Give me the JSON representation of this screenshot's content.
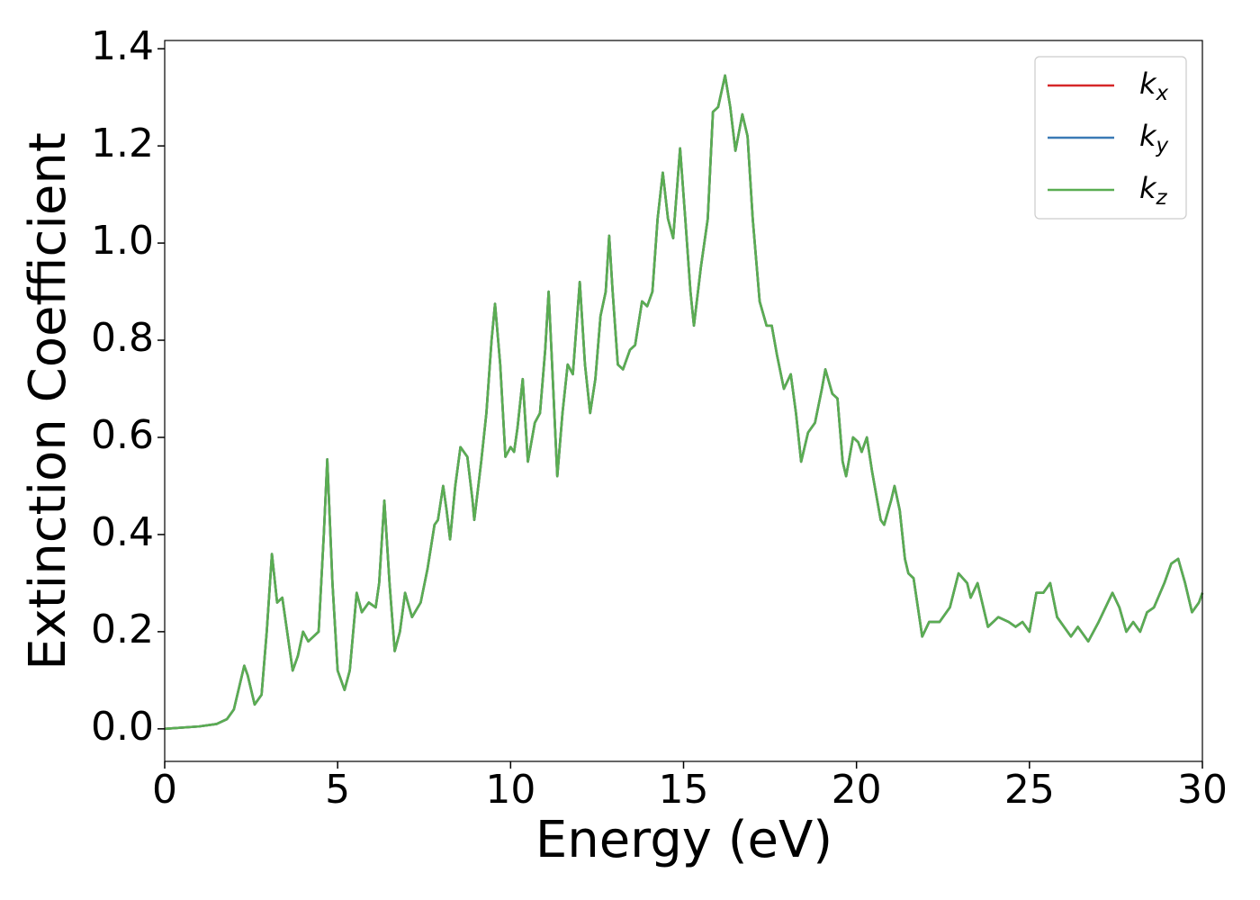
{
  "chart_data": {
    "type": "line",
    "xlabel": "Energy (eV)",
    "ylabel": "Extinction Coefficient",
    "x": [
      0,
      1,
      1.5,
      1.8,
      2.0,
      2.2,
      2.3,
      2.4,
      2.6,
      2.8,
      2.95,
      3.1,
      3.25,
      3.4,
      3.5,
      3.7,
      3.85,
      4.0,
      4.15,
      4.3,
      4.45,
      4.6,
      4.7,
      4.85,
      5.0,
      5.2,
      5.35,
      5.55,
      5.7,
      5.9,
      6.1,
      6.2,
      6.35,
      6.5,
      6.65,
      6.8,
      6.95,
      7.15,
      7.4,
      7.6,
      7.8,
      7.9,
      8.05,
      8.15,
      8.25,
      8.4,
      8.55,
      8.75,
      8.9,
      8.95,
      9.15,
      9.3,
      9.45,
      9.55,
      9.7,
      9.85,
      10.0,
      10.1,
      10.2,
      10.35,
      10.5,
      10.7,
      10.85,
      11.0,
      11.1,
      11.2,
      11.35,
      11.5,
      11.65,
      11.8,
      12.0,
      12.15,
      12.3,
      12.45,
      12.6,
      12.75,
      12.85,
      12.95,
      13.1,
      13.25,
      13.45,
      13.6,
      13.8,
      13.95,
      14.1,
      14.25,
      14.4,
      14.55,
      14.7,
      14.9,
      15.05,
      15.2,
      15.3,
      15.5,
      15.7,
      15.85,
      16.0,
      16.2,
      16.35,
      16.5,
      16.7,
      16.85,
      17.0,
      17.2,
      17.4,
      17.55,
      17.7,
      17.9,
      18.1,
      18.25,
      18.4,
      18.6,
      18.8,
      19.0,
      19.1,
      19.3,
      19.45,
      19.6,
      19.7,
      19.9,
      20.05,
      20.15,
      20.3,
      20.45,
      20.7,
      20.8,
      21.0,
      21.1,
      21.25,
      21.4,
      21.5,
      21.65,
      21.9,
      22.1,
      22.4,
      22.7,
      22.95,
      23.2,
      23.3,
      23.5,
      23.8,
      24.1,
      24.4,
      24.6,
      24.8,
      25.0,
      25.2,
      25.4,
      25.6,
      25.8,
      26.0,
      26.2,
      26.4,
      26.7,
      27.0,
      27.4,
      27.6,
      27.8,
      28.0,
      28.2,
      28.4,
      28.6,
      28.9,
      29.1,
      29.3,
      29.5,
      29.7,
      29.9,
      30
    ],
    "series": [
      {
        "name": "kx",
        "color": "#d62728",
        "values": [
          0,
          0.005,
          0.01,
          0.02,
          0.04,
          0.1,
          0.13,
          0.11,
          0.05,
          0.07,
          0.2,
          0.36,
          0.26,
          0.27,
          0.22,
          0.12,
          0.15,
          0.2,
          0.18,
          0.19,
          0.2,
          0.4,
          0.555,
          0.3,
          0.12,
          0.08,
          0.12,
          0.28,
          0.24,
          0.26,
          0.25,
          0.3,
          0.47,
          0.3,
          0.16,
          0.2,
          0.28,
          0.23,
          0.26,
          0.33,
          0.42,
          0.43,
          0.5,
          0.45,
          0.39,
          0.5,
          0.58,
          0.56,
          0.47,
          0.43,
          0.55,
          0.65,
          0.8,
          0.875,
          0.75,
          0.56,
          0.58,
          0.57,
          0.62,
          0.72,
          0.55,
          0.63,
          0.65,
          0.78,
          0.9,
          0.75,
          0.52,
          0.65,
          0.75,
          0.73,
          0.92,
          0.75,
          0.65,
          0.72,
          0.85,
          0.9,
          1.015,
          0.9,
          0.75,
          0.74,
          0.78,
          0.79,
          0.88,
          0.87,
          0.9,
          1.05,
          1.145,
          1.05,
          1.01,
          1.195,
          1.05,
          0.9,
          0.83,
          0.95,
          1.05,
          1.27,
          1.28,
          1.345,
          1.28,
          1.19,
          1.265,
          1.22,
          1.05,
          0.88,
          0.83,
          0.83,
          0.77,
          0.7,
          0.73,
          0.65,
          0.55,
          0.61,
          0.63,
          0.7,
          0.74,
          0.69,
          0.68,
          0.55,
          0.52,
          0.6,
          0.59,
          0.57,
          0.6,
          0.53,
          0.43,
          0.42,
          0.47,
          0.5,
          0.45,
          0.35,
          0.32,
          0.31,
          0.19,
          0.22,
          0.22,
          0.25,
          0.32,
          0.3,
          0.27,
          0.3,
          0.21,
          0.23,
          0.22,
          0.21,
          0.22,
          0.2,
          0.28,
          0.28,
          0.3,
          0.23,
          0.21,
          0.19,
          0.21,
          0.18,
          0.22,
          0.28,
          0.25,
          0.2,
          0.22,
          0.2,
          0.24,
          0.25,
          0.3,
          0.34,
          0.35,
          0.3,
          0.24,
          0.26,
          0.28
        ]
      },
      {
        "name": "ky",
        "color": "#3a7ab5",
        "values": [
          0,
          0.005,
          0.01,
          0.02,
          0.04,
          0.1,
          0.13,
          0.11,
          0.05,
          0.07,
          0.2,
          0.36,
          0.26,
          0.27,
          0.22,
          0.12,
          0.15,
          0.2,
          0.18,
          0.19,
          0.2,
          0.4,
          0.555,
          0.3,
          0.12,
          0.08,
          0.12,
          0.28,
          0.24,
          0.26,
          0.25,
          0.3,
          0.47,
          0.3,
          0.16,
          0.2,
          0.28,
          0.23,
          0.26,
          0.33,
          0.42,
          0.43,
          0.5,
          0.45,
          0.39,
          0.5,
          0.58,
          0.56,
          0.47,
          0.43,
          0.55,
          0.65,
          0.8,
          0.875,
          0.75,
          0.56,
          0.58,
          0.57,
          0.62,
          0.72,
          0.55,
          0.63,
          0.65,
          0.78,
          0.9,
          0.75,
          0.52,
          0.65,
          0.75,
          0.73,
          0.92,
          0.75,
          0.65,
          0.72,
          0.85,
          0.9,
          1.015,
          0.9,
          0.75,
          0.74,
          0.78,
          0.79,
          0.88,
          0.87,
          0.9,
          1.05,
          1.145,
          1.05,
          1.01,
          1.195,
          1.05,
          0.9,
          0.83,
          0.95,
          1.05,
          1.27,
          1.28,
          1.345,
          1.28,
          1.19,
          1.265,
          1.22,
          1.05,
          0.88,
          0.83,
          0.83,
          0.77,
          0.7,
          0.73,
          0.65,
          0.55,
          0.61,
          0.63,
          0.7,
          0.74,
          0.69,
          0.68,
          0.55,
          0.52,
          0.6,
          0.59,
          0.57,
          0.6,
          0.53,
          0.43,
          0.42,
          0.47,
          0.5,
          0.45,
          0.35,
          0.32,
          0.31,
          0.19,
          0.22,
          0.22,
          0.25,
          0.32,
          0.3,
          0.27,
          0.3,
          0.21,
          0.23,
          0.22,
          0.21,
          0.22,
          0.2,
          0.28,
          0.28,
          0.3,
          0.23,
          0.21,
          0.19,
          0.21,
          0.18,
          0.22,
          0.28,
          0.25,
          0.2,
          0.22,
          0.2,
          0.24,
          0.25,
          0.3,
          0.34,
          0.35,
          0.3,
          0.24,
          0.26,
          0.28
        ]
      },
      {
        "name": "kz",
        "color": "#5aad52",
        "values": [
          0,
          0.005,
          0.01,
          0.02,
          0.04,
          0.1,
          0.13,
          0.11,
          0.05,
          0.07,
          0.2,
          0.36,
          0.26,
          0.27,
          0.22,
          0.12,
          0.15,
          0.2,
          0.18,
          0.19,
          0.2,
          0.4,
          0.555,
          0.3,
          0.12,
          0.08,
          0.12,
          0.28,
          0.24,
          0.26,
          0.25,
          0.3,
          0.47,
          0.3,
          0.16,
          0.2,
          0.28,
          0.23,
          0.26,
          0.33,
          0.42,
          0.43,
          0.5,
          0.45,
          0.39,
          0.5,
          0.58,
          0.56,
          0.47,
          0.43,
          0.55,
          0.65,
          0.8,
          0.875,
          0.75,
          0.56,
          0.58,
          0.57,
          0.62,
          0.72,
          0.55,
          0.63,
          0.65,
          0.78,
          0.9,
          0.75,
          0.52,
          0.65,
          0.75,
          0.73,
          0.92,
          0.75,
          0.65,
          0.72,
          0.85,
          0.9,
          1.015,
          0.9,
          0.75,
          0.74,
          0.78,
          0.79,
          0.88,
          0.87,
          0.9,
          1.05,
          1.145,
          1.05,
          1.01,
          1.195,
          1.05,
          0.9,
          0.83,
          0.95,
          1.05,
          1.27,
          1.28,
          1.345,
          1.28,
          1.19,
          1.265,
          1.22,
          1.05,
          0.88,
          0.83,
          0.83,
          0.77,
          0.7,
          0.73,
          0.65,
          0.55,
          0.61,
          0.63,
          0.7,
          0.74,
          0.69,
          0.68,
          0.55,
          0.52,
          0.6,
          0.59,
          0.57,
          0.6,
          0.53,
          0.43,
          0.42,
          0.47,
          0.5,
          0.45,
          0.35,
          0.32,
          0.31,
          0.19,
          0.22,
          0.22,
          0.25,
          0.32,
          0.3,
          0.27,
          0.3,
          0.21,
          0.23,
          0.22,
          0.21,
          0.22,
          0.2,
          0.28,
          0.28,
          0.3,
          0.23,
          0.21,
          0.19,
          0.21,
          0.18,
          0.22,
          0.28,
          0.25,
          0.2,
          0.22,
          0.2,
          0.24,
          0.25,
          0.3,
          0.34,
          0.35,
          0.3,
          0.24,
          0.26,
          0.28
        ]
      }
    ],
    "xlim": [
      0,
      30
    ],
    "xticks": [
      0,
      5,
      10,
      15,
      20,
      25,
      30
    ],
    "ylim": [
      -0.067,
      1.417
    ],
    "yticks": [
      {
        "value": 0,
        "label": "0.0"
      },
      0.2,
      0.4,
      0.6,
      0.8,
      {
        "value": 1,
        "label": "1.0"
      },
      1.2,
      1.4
    ],
    "grid": false,
    "legend": "upper right"
  }
}
